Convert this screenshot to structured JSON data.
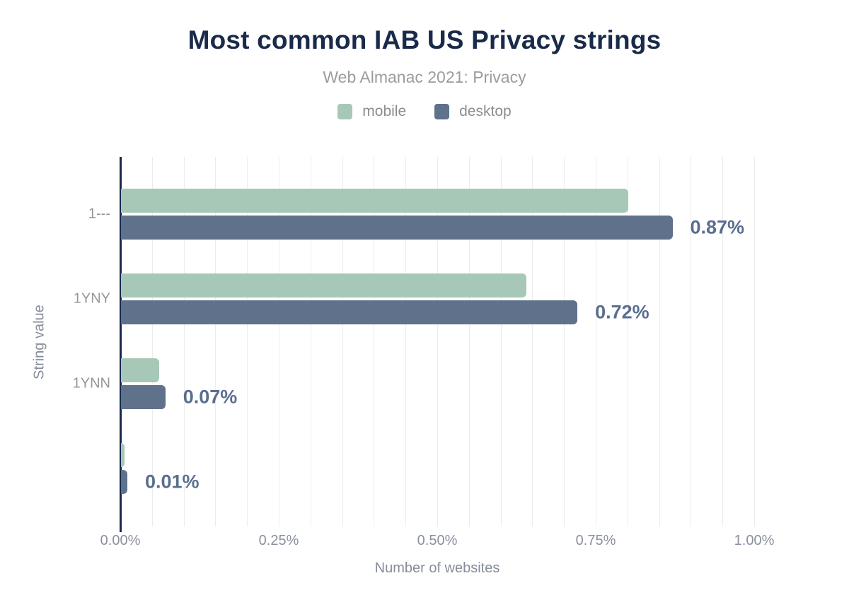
{
  "header": {
    "title": "Most common IAB US Privacy strings",
    "subtitle": "Web Almanac 2021: Privacy"
  },
  "legend": [
    {
      "label": "mobile",
      "color": "#a8c8b7"
    },
    {
      "label": "desktop",
      "color": "#5f718b"
    }
  ],
  "chart_data": {
    "type": "bar",
    "orientation": "horizontal",
    "title": "Most common IAB US Privacy strings",
    "subtitle": "Web Almanac 2021: Privacy",
    "categories": [
      "1---",
      "1YNY",
      "1YNN",
      ""
    ],
    "series": [
      {
        "name": "mobile",
        "color": "#a8c8b7",
        "values": [
          0.8,
          0.64,
          0.06,
          0.005
        ]
      },
      {
        "name": "desktop",
        "color": "#5f718b",
        "values": [
          0.87,
          0.72,
          0.07,
          0.01
        ]
      }
    ],
    "value_labels": [
      "0.87%",
      "0.72%",
      "0.07%",
      "0.01%"
    ],
    "value_label_series": "desktop",
    "xlabel": "Number of websites",
    "ylabel": "String value",
    "xlim": [
      0,
      1.0
    ],
    "grid_step": 0.05,
    "x_ticks": [
      {
        "value": 0.0,
        "label": "0.00%"
      },
      {
        "value": 0.25,
        "label": "0.25%"
      },
      {
        "value": 0.5,
        "label": "0.50%"
      },
      {
        "value": 0.75,
        "label": "0.75%"
      },
      {
        "value": 1.0,
        "label": "1.00%"
      }
    ],
    "legend_position": "top",
    "grid": true
  },
  "colors": {
    "title": "#1a2b49",
    "subtitle": "#9c9c9c",
    "axis_line": "#16294b",
    "gridline": "#ececec",
    "value_label": "#5a6e8f",
    "tick_label": "#8a909e"
  }
}
